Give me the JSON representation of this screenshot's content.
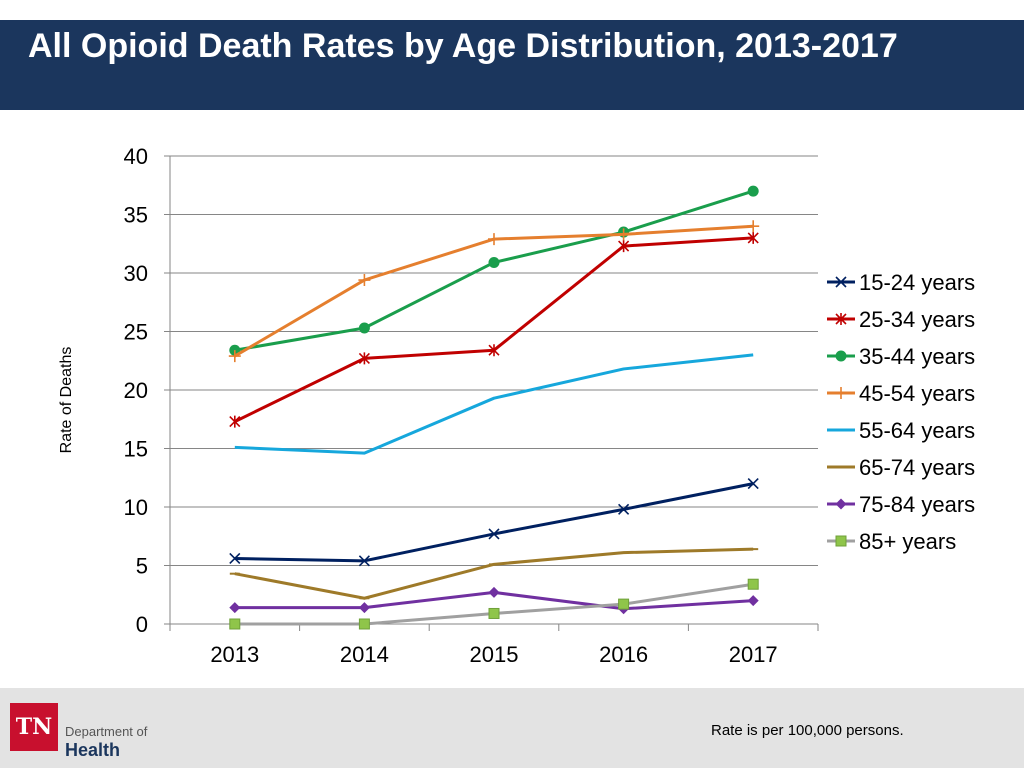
{
  "title": "All Opioid Death Rates by Age Distribution, 2013-2017",
  "footer": {
    "note": "Rate is per 100,000 persons.",
    "logo": {
      "mark": "TN",
      "dept": "Department of",
      "health": "Health"
    }
  },
  "chart_data": {
    "type": "line",
    "title": "All Opioid Death Rates by Age Distribution, 2013-2017",
    "xlabel": "",
    "ylabel": "Rate of Deaths",
    "ylim": [
      0,
      40
    ],
    "yticks": [
      0,
      5,
      10,
      15,
      20,
      25,
      30,
      35,
      40
    ],
    "grid": true,
    "legend": "right",
    "categories": [
      "2013",
      "2014",
      "2015",
      "2016",
      "2017"
    ],
    "series": [
      {
        "name": "15-24 years",
        "color": "#002060",
        "marker": "x",
        "values": [
          5.6,
          5.4,
          7.7,
          9.8,
          12.0
        ]
      },
      {
        "name": "25-34 years",
        "color": "#c00000",
        "marker": "asterisk",
        "values": [
          17.3,
          22.7,
          23.4,
          32.3,
          33.0
        ]
      },
      {
        "name": "35-44 years",
        "color": "#1a9e4c",
        "marker": "circle",
        "values": [
          23.4,
          25.3,
          30.9,
          33.5,
          37.0
        ]
      },
      {
        "name": "45-54 years",
        "color": "#e57f2e",
        "marker": "plus",
        "values": [
          22.9,
          29.4,
          32.9,
          33.3,
          34.0
        ]
      },
      {
        "name": "55-64 years",
        "color": "#16a7dc",
        "marker": "none",
        "values": [
          15.1,
          14.6,
          19.3,
          21.8,
          23.0
        ]
      },
      {
        "name": "65-74 years",
        "color": "#9e7a29",
        "marker": "dash",
        "values": [
          4.3,
          2.2,
          5.1,
          6.1,
          6.4
        ]
      },
      {
        "name": "75-84 years",
        "color": "#7030a0",
        "marker": "diamond",
        "values": [
          1.4,
          1.4,
          2.7,
          1.3,
          2.0
        ]
      },
      {
        "name": "85+ years",
        "color": "#a0a0a0",
        "marker": "square",
        "values": [
          0.0,
          0.0,
          0.9,
          1.7,
          3.4
        ]
      }
    ]
  }
}
